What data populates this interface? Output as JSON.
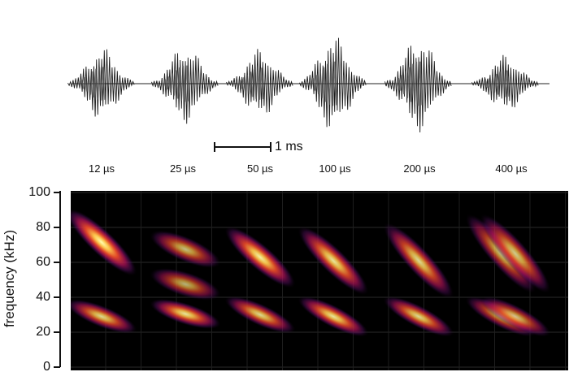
{
  "chart_data": {
    "type": "heatmap",
    "description_panels": [
      "waveform",
      "spectrogram"
    ],
    "conditions": [
      "12 µs",
      "25 µs",
      "50 µs",
      "100 µs",
      "200 µs",
      "400 µs"
    ],
    "scale_bar": {
      "label": "1 ms",
      "value_ms": 1
    },
    "y_axis": {
      "label": "frequency (kHz)",
      "ticks": [
        "0",
        "20",
        "40",
        "60",
        "80",
        "100"
      ],
      "tick_values": [
        0,
        20,
        40,
        60,
        80,
        100
      ],
      "range": [
        0,
        100
      ]
    },
    "call_duration_ms": 1.5,
    "calls": [
      {
        "condition": "12 µs",
        "components": [
          {
            "harmonic": 2,
            "start_kHz": 88,
            "end_kHz": 55,
            "intensity": 1.0
          },
          {
            "harmonic": 1,
            "start_kHz": 36,
            "end_kHz": 22,
            "intensity": 0.85
          }
        ]
      },
      {
        "condition": "25 µs",
        "components": [
          {
            "harmonic": 2,
            "start_kHz": 75,
            "end_kHz": 60,
            "intensity": 0.75
          },
          {
            "harmonic": 2,
            "start_kHz": 53,
            "end_kHz": 42,
            "intensity": 0.7
          },
          {
            "harmonic": 1,
            "start_kHz": 36,
            "end_kHz": 25,
            "intensity": 0.9
          }
        ]
      },
      {
        "condition": "50 µs",
        "components": [
          {
            "harmonic": 2,
            "start_kHz": 78,
            "end_kHz": 48,
            "intensity": 0.95
          },
          {
            "harmonic": 1,
            "start_kHz": 38,
            "end_kHz": 22,
            "intensity": 0.85
          }
        ]
      },
      {
        "condition": "100 µs",
        "components": [
          {
            "harmonic": 2,
            "start_kHz": 78,
            "end_kHz": 44,
            "intensity": 0.9
          },
          {
            "harmonic": 1,
            "start_kHz": 38,
            "end_kHz": 20,
            "intensity": 0.9
          }
        ]
      },
      {
        "condition": "200 µs",
        "components": [
          {
            "harmonic": 2,
            "start_kHz": 80,
            "end_kHz": 42,
            "intensity": 0.85
          },
          {
            "harmonic": 1,
            "start_kHz": 38,
            "end_kHz": 20,
            "intensity": 0.85
          }
        ]
      },
      {
        "condition": "400 µs",
        "components": [
          {
            "harmonic": 2,
            "start_kHz": 85,
            "end_kHz": 45,
            "intensity": 0.75
          },
          {
            "harmonic": 2,
            "start_kHz": 85,
            "end_kHz": 45,
            "intensity": 0.8
          },
          {
            "harmonic": 1,
            "start_kHz": 38,
            "end_kHz": 20,
            "intensity": 0.75
          },
          {
            "harmonic": 1,
            "start_kHz": 38,
            "end_kHz": 20,
            "intensity": 0.75
          }
        ]
      }
    ],
    "waveform_peak_envelope": [
      0.75,
      0.82,
      0.72,
      1.0,
      1.0,
      0.6
    ],
    "colormap": [
      "#000000",
      "#4a0a5c",
      "#a0135e",
      "#e63a2e",
      "#f7931e",
      "#ffff9e"
    ],
    "grid": true
  }
}
